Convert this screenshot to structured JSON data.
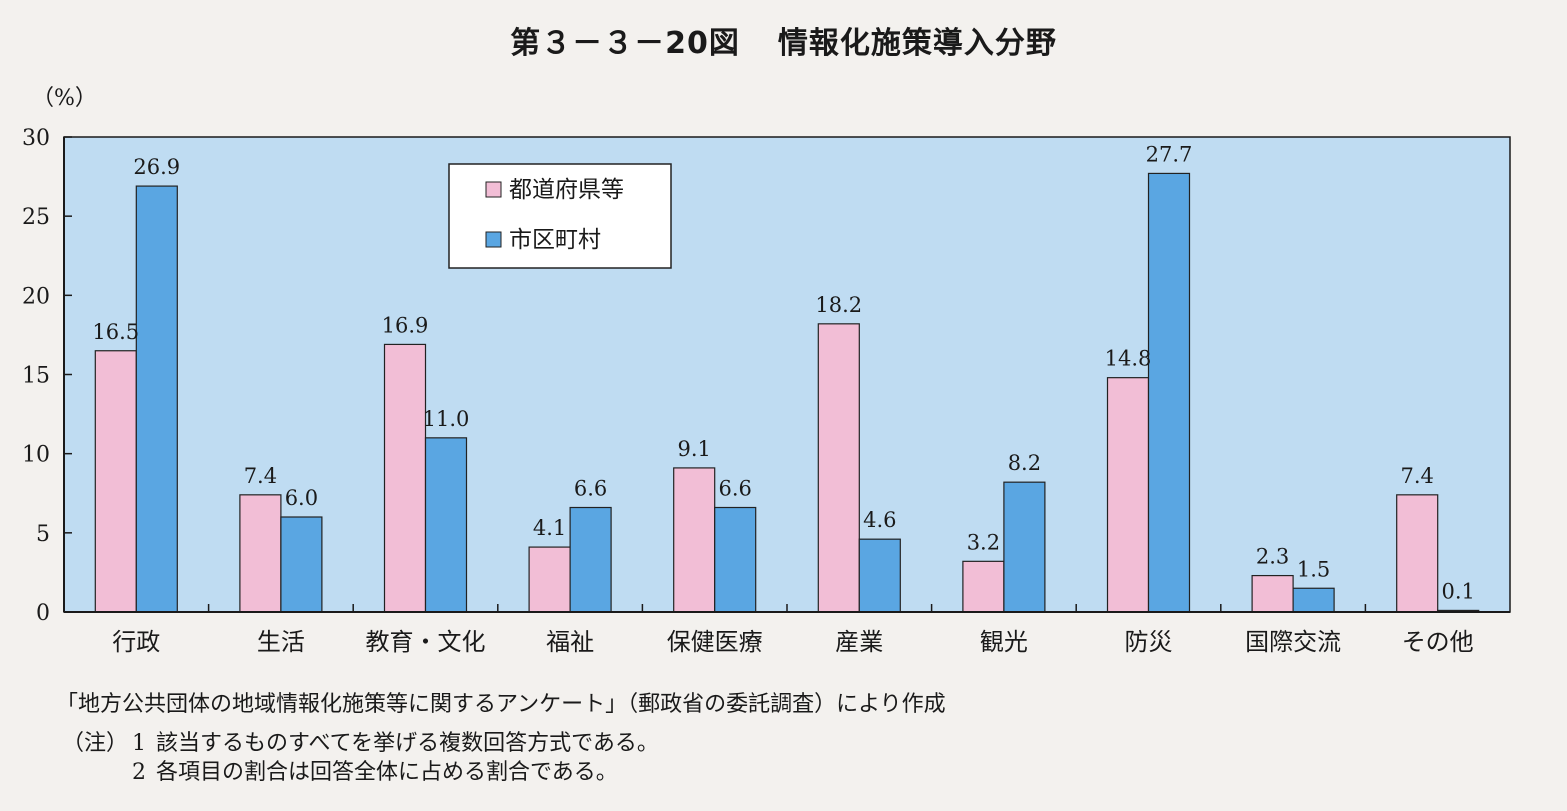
{
  "title": {
    "figure_number": "第３－３－20図",
    "text": "情報化施策導入分野"
  },
  "unit_label": "（%）",
  "source": "「地方公共団体の地域情報化施策等に関するアンケート」（郵政省の委託調査）により作成",
  "notes": {
    "label": "（注）",
    "items": [
      {
        "num": "1",
        "text": "該当するものすべてを挙げる複数回答方式である。"
      },
      {
        "num": "2",
        "text": "各項目の割合は回答全体に占める割合である。"
      }
    ]
  },
  "colors": {
    "plot_background": "#bfdcf2",
    "series_prefecture": "#f2bed6",
    "series_municipality": "#5aa6e2",
    "axis": "#1a1a1a"
  },
  "chart_data": {
    "type": "bar",
    "categories": [
      "行政",
      "生活",
      "教育・文化",
      "福祉",
      "保健医療",
      "産業",
      "観光",
      "防災",
      "国際交流",
      "その他"
    ],
    "series": [
      {
        "name": "都道府県等",
        "values": [
          16.5,
          7.4,
          16.9,
          4.1,
          9.1,
          18.2,
          3.2,
          14.8,
          2.3,
          7.4
        ]
      },
      {
        "name": "市区町村",
        "values": [
          26.9,
          6.0,
          11.0,
          6.6,
          6.6,
          4.6,
          8.2,
          27.7,
          1.5,
          0.1
        ]
      }
    ],
    "value_labels": [
      [
        "16.5",
        "7.4",
        "16.9",
        "4.1",
        "9.1",
        "18.2",
        "3.2",
        "14.8",
        "2.3",
        "7.4"
      ],
      [
        "26.9",
        "6.0",
        "11.0",
        "6.6",
        "6.6",
        "4.6",
        "8.2",
        "27.7",
        "1.5",
        "0.1"
      ]
    ],
    "yticks": [
      "0",
      "5",
      "10",
      "15",
      "20",
      "25",
      "30"
    ],
    "ylim": [
      0,
      30
    ],
    "ylabel": "（%）",
    "xlabel": "",
    "grid": false,
    "legend_position": "top-center"
  }
}
